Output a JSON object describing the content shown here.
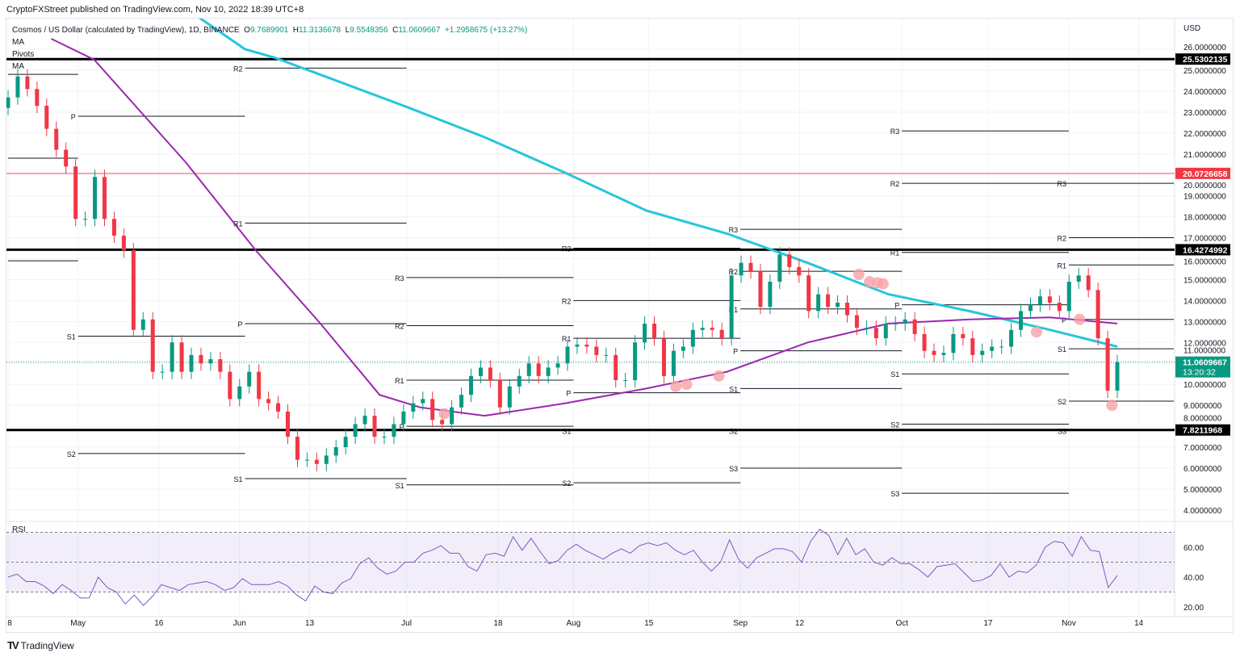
{
  "published": "CryptoFXStreet published on TradingView.com, Nov 10, 2022 18:39 UTC+8",
  "legend": {
    "symbol": "Cosmos / US Dollar (calculated by TradingView), 1D, BINANCE",
    "o_label": "O",
    "o": "9.7689901",
    "h_label": "H",
    "h": "11.3136678",
    "l_label": "L",
    "l": "9.5548356",
    "c_label": "C",
    "c": "11.0609667",
    "change": "+1.2958675 (+13.27%)",
    "indicators": [
      "MA",
      "Pivots",
      "MA"
    ],
    "rsi_label": "RSI"
  },
  "footer": {
    "logo": "TradingView"
  },
  "colors": {
    "up": "#089981",
    "down": "#f23645",
    "ma50": "#9c27b0",
    "ma200": "#26c6da",
    "rsi": "#7e57c2",
    "marker": "#f7a1a8"
  },
  "chart_data": {
    "type": "candlestick",
    "currency": "USD",
    "x_unit": "days since Apr 18 2022",
    "x_ticks": [
      {
        "label": "8",
        "day": 0
      },
      {
        "label": "May",
        "day": 13
      },
      {
        "label": "16",
        "day": 28
      },
      {
        "label": "Jun",
        "day": 43
      },
      {
        "label": "13",
        "day": 56
      },
      {
        "label": "Jul",
        "day": 74
      },
      {
        "label": "18",
        "day": 91
      },
      {
        "label": "Aug",
        "day": 105
      },
      {
        "label": "15",
        "day": 119
      },
      {
        "label": "Sep",
        "day": 136
      },
      {
        "label": "12",
        "day": 147
      },
      {
        "label": "Oct",
        "day": 166
      },
      {
        "label": "17",
        "day": 182
      },
      {
        "label": "Nov",
        "day": 197
      },
      {
        "label": "14",
        "day": 210
      }
    ],
    "y_ticks": [
      "26.0000000",
      "25.0000000",
      "24.0000000",
      "23.0000000",
      "22.0000000",
      "21.0000000",
      "20.0000000",
      "19.0000000",
      "18.0000000",
      "17.0000000",
      "16.0000000",
      "15.0000000",
      "14.0000000",
      "13.0000000",
      "12.0000000",
      "11.0000000",
      "10.0000000",
      "9.0000000",
      "8.0000000",
      "7.0000000",
      "6.0000000",
      "5.0000000",
      "4.0000000"
    ],
    "ylim": [
      3.6,
      27.5
    ],
    "first_open": 23.2,
    "closes": [
      23.7,
      24.7,
      24.1,
      23.3,
      22.2,
      21.2,
      20.4,
      17.9,
      17.9,
      19.9,
      17.9,
      17.1,
      16.4,
      12.6,
      13.1,
      10.6,
      10.6,
      12.0,
      10.6,
      11.4,
      11.0,
      11.2,
      10.6,
      9.3,
      9.9,
      10.6,
      9.3,
      9.1,
      8.7,
      7.5,
      6.4,
      6.4,
      6.2,
      6.6,
      7.0,
      7.5,
      8.1,
      8.5,
      7.5,
      7.5,
      8.1,
      8.7,
      9.1,
      9.3,
      8.3,
      8.1,
      8.9,
      9.5,
      10.4,
      10.8,
      10.2,
      8.9,
      9.9,
      10.4,
      11.0,
      10.4,
      10.8,
      11.0,
      11.8,
      11.9,
      11.8,
      11.4,
      11.4,
      10.2,
      10.2,
      12.0,
      12.9,
      12.2,
      10.4,
      11.6,
      11.8,
      12.6,
      12.7,
      12.6,
      12.2,
      15.2,
      15.8,
      15.4,
      13.7,
      14.9,
      16.2,
      15.6,
      15.2,
      13.5,
      14.3,
      13.7,
      13.9,
      13.3,
      12.7,
      12.7,
      12.2,
      12.9,
      12.9,
      13.1,
      12.4,
      11.6,
      11.4,
      11.5,
      12.4,
      12.2,
      11.4,
      11.6,
      11.8,
      11.8,
      12.6,
      13.5,
      13.8,
      14.2,
      13.9,
      13.5,
      14.9,
      15.2,
      14.5,
      12.2,
      9.7,
      11.0609667
    ],
    "last_day": 206,
    "ma50": [
      [
        8,
        26.5
      ],
      [
        16,
        25.5
      ],
      [
        33,
        20.6
      ],
      [
        46,
        16.4
      ],
      [
        58,
        12.9
      ],
      [
        69,
        9.5
      ],
      [
        76.5,
        8.9
      ],
      [
        88.5,
        8.5
      ],
      [
        103.5,
        9.1
      ],
      [
        118.5,
        9.8
      ],
      [
        133.5,
        10.6
      ],
      [
        148.5,
        12.0
      ],
      [
        163.5,
        12.9
      ],
      [
        178.5,
        13.1
      ],
      [
        193.5,
        13.2
      ],
      [
        206,
        12.9
      ]
    ],
    "ma200": [
      [
        35,
        27.6
      ],
      [
        44,
        26.0
      ],
      [
        49.5,
        25.6
      ],
      [
        73.5,
        23.3
      ],
      [
        88.5,
        21.8
      ],
      [
        103.5,
        20.1
      ],
      [
        118.5,
        18.3
      ],
      [
        133.5,
        17.2
      ],
      [
        148.5,
        15.8
      ],
      [
        163.5,
        14.3
      ],
      [
        178.5,
        13.5
      ],
      [
        193.5,
        12.6
      ],
      [
        206,
        11.8
      ]
    ],
    "levels": [
      {
        "price": 25.5302135,
        "label": "25.5302135",
        "kind": "black"
      },
      {
        "price": 20.0726658,
        "label": "20.0726658",
        "kind": "red"
      },
      {
        "price": 16.4274992,
        "label": "16.4274992",
        "kind": "black"
      },
      {
        "price": 7.8211968,
        "label": "7.8211968",
        "kind": "black"
      }
    ],
    "last_price": {
      "price": 11.0609667,
      "label": "11.0609667",
      "countdown": "13:20:32"
    },
    "pivot_periods": [
      {
        "from": 0,
        "to": 13,
        "levels": [
          [
            "",
            24.8
          ],
          [
            "",
            20.8
          ],
          [
            "",
            15.9
          ]
        ]
      },
      {
        "from": 13,
        "to": 44,
        "levels": [
          [
            "P",
            22.8
          ],
          [
            "S1",
            12.3
          ],
          [
            "S2",
            6.7
          ]
        ]
      },
      {
        "from": 44,
        "to": 74,
        "levels": [
          [
            "R2",
            25.1
          ],
          [
            "R1",
            17.7
          ],
          [
            "P",
            12.9
          ],
          [
            "S1",
            5.5
          ]
        ]
      },
      {
        "from": 74,
        "to": 105,
        "levels": [
          [
            "R3",
            15.1
          ],
          [
            "R2",
            12.8
          ],
          [
            "R1",
            10.2
          ],
          [
            "P",
            8.0
          ],
          [
            "S1",
            5.2
          ]
        ]
      },
      {
        "from": 105,
        "to": 136,
        "levels": [
          [
            "R3",
            16.5
          ],
          [
            "R2",
            14.0
          ],
          [
            "R1",
            12.2
          ],
          [
            "P",
            9.6
          ],
          [
            "S1",
            7.8
          ],
          [
            "S2",
            5.3
          ]
        ]
      },
      {
        "from": 136,
        "to": 166,
        "levels": [
          [
            "R3",
            17.4
          ],
          [
            "R2",
            15.4
          ],
          [
            "R1",
            13.6
          ],
          [
            "P",
            11.6
          ],
          [
            "S1",
            9.8
          ],
          [
            "S2",
            7.8
          ],
          [
            "S3",
            6.0
          ]
        ]
      },
      {
        "from": 166,
        "to": 197,
        "levels": [
          [
            "R3",
            22.1
          ],
          [
            "R2",
            19.6
          ],
          [
            "R1",
            16.3
          ],
          [
            "P",
            13.8
          ],
          [
            "S1",
            10.5
          ],
          [
            "S2",
            8.1
          ],
          [
            "S3",
            4.8
          ]
        ]
      },
      {
        "from": 197,
        "to": 216.5,
        "levels": [
          [
            "R3",
            19.6
          ],
          [
            "R2",
            17.0
          ],
          [
            "R1",
            15.7
          ],
          [
            "P",
            13.1
          ],
          [
            "S1",
            11.7
          ],
          [
            "S2",
            9.2
          ],
          [
            "S3",
            7.8
          ]
        ]
      }
    ],
    "markers": [
      [
        81,
        8.6
      ],
      [
        124,
        9.9
      ],
      [
        126,
        10.0
      ],
      [
        132,
        10.4
      ],
      [
        158,
        15.25
      ],
      [
        160,
        14.9
      ],
      [
        161.5,
        14.85
      ],
      [
        162.5,
        14.8
      ],
      [
        191,
        12.5
      ],
      [
        199,
        13.1
      ],
      [
        205,
        9.0
      ]
    ],
    "rsi": {
      "ylim": [
        15,
        75
      ],
      "ticks": [
        "60.00",
        "40.00",
        "20.00"
      ],
      "bands": [
        70,
        50,
        30
      ],
      "values": [
        40,
        42,
        37,
        37,
        34,
        29,
        35,
        31,
        26,
        26,
        40,
        33,
        30,
        22,
        28,
        21,
        27,
        35,
        33,
        31,
        35,
        36,
        37,
        35,
        31,
        33,
        39,
        35,
        35,
        35,
        37,
        34,
        28,
        24,
        34,
        30,
        29,
        36,
        39,
        49,
        53,
        46,
        42,
        44,
        50,
        50,
        56,
        58,
        61,
        56,
        56,
        47,
        44,
        55,
        56,
        54,
        67,
        58,
        66,
        57,
        49,
        51,
        58,
        62,
        58,
        55,
        52,
        56,
        59,
        56,
        61,
        63,
        61,
        63,
        58,
        55,
        58,
        50,
        44,
        50,
        65,
        52,
        46,
        53,
        56,
        59,
        59,
        57,
        50,
        64,
        72,
        68,
        55,
        66,
        55,
        59,
        50,
        48,
        53,
        49,
        49,
        45,
        40,
        47,
        48,
        49,
        43,
        37,
        38,
        41,
        49,
        40,
        44,
        43,
        48,
        60,
        64,
        63,
        54,
        67,
        58,
        57,
        33,
        41
      ]
    }
  }
}
